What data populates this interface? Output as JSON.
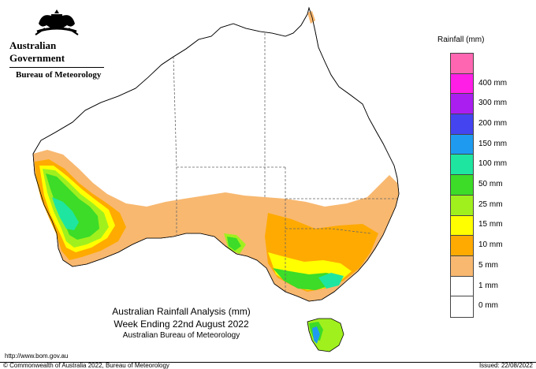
{
  "header": {
    "government": "Australian Government",
    "bureau": "Bureau of Meteorology",
    "crest_icon": "coat-of-arms-icon"
  },
  "legend": {
    "title": "Rainfall (mm)",
    "items": [
      {
        "label": "",
        "color": "#ff66b2"
      },
      {
        "label": "400 mm",
        "color": "#ff1ee6"
      },
      {
        "label": "300 mm",
        "color": "#aa1ef0"
      },
      {
        "label": "200 mm",
        "color": "#4444f0"
      },
      {
        "label": "150 mm",
        "color": "#1e9bf0"
      },
      {
        "label": "100 mm",
        "color": "#1ee6a0"
      },
      {
        "label": "50 mm",
        "color": "#3cdc28"
      },
      {
        "label": "25 mm",
        "color": "#a0f01e"
      },
      {
        "label": "15 mm",
        "color": "#ffff00"
      },
      {
        "label": "10 mm",
        "color": "#ffaa00"
      },
      {
        "label": "5 mm",
        "color": "#f8b870"
      },
      {
        "label": "1 mm",
        "color": "#ffffff"
      },
      {
        "label": "0 mm",
        "color": "#ffffff"
      }
    ]
  },
  "caption": {
    "line1": "Australian Rainfall Analysis (mm)",
    "line2": "Week Ending 22nd August 2022",
    "line3": "Australian Bureau of Meteorology"
  },
  "footer": {
    "url": "http://www.bom.gov.au",
    "copyright": "© Commonwealth of Australia 2022, Bureau of Meteorology",
    "issued": "Issued: 22/08/2022"
  },
  "colors": {
    "outline": "#000000",
    "border_dash": "#666666",
    "light_orange": "#f8b870",
    "orange": "#ffaa00",
    "yellow": "#ffff00",
    "lime": "#a0f01e",
    "green": "#3cdc28",
    "teal": "#1ee6a0",
    "blue": "#1e9bf0"
  }
}
